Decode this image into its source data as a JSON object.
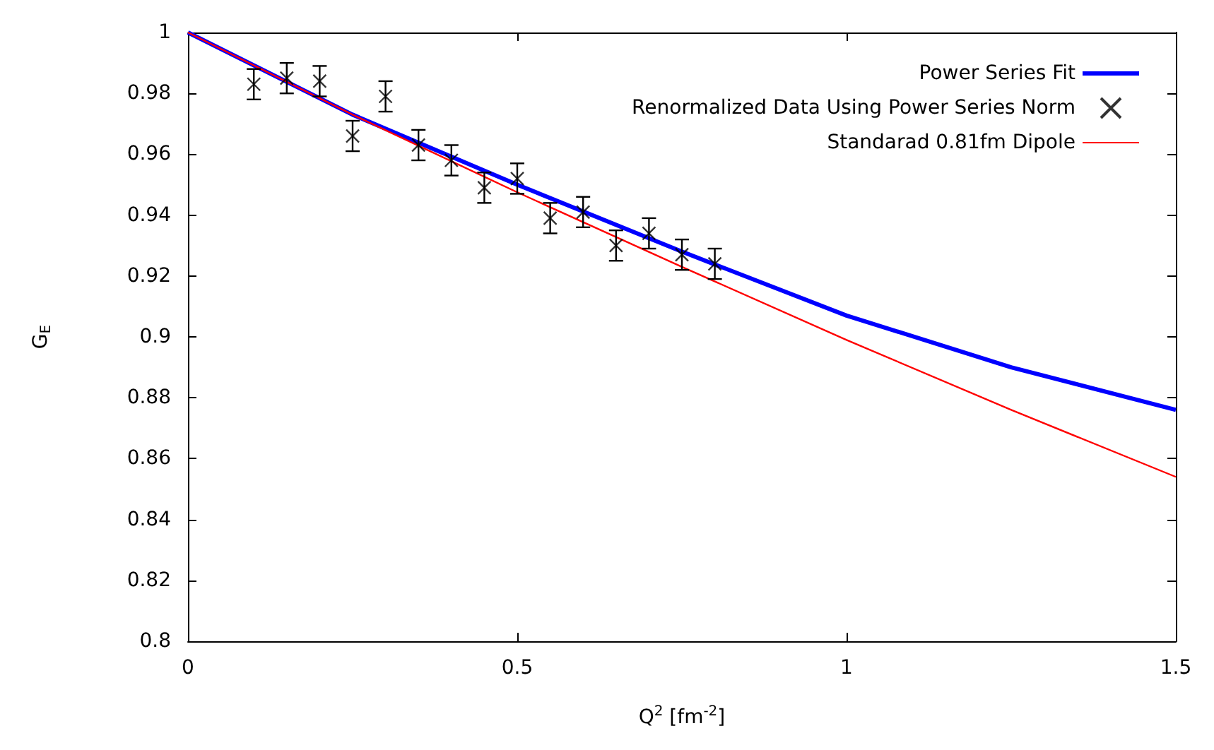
{
  "chart_data": {
    "type": "line",
    "xlabel": "Q$^{2}$ [fm$^{-2}$]",
    "ylabel": "G$_{E}$",
    "xlim": [
      0,
      1.5
    ],
    "xticks": [
      0,
      0.5,
      1,
      1.5
    ],
    "ylim": [
      0.8,
      1
    ],
    "yticks": [
      0.8,
      0.82,
      0.84,
      0.86,
      0.88,
      0.9,
      0.92,
      0.94,
      0.96,
      0.98,
      1
    ],
    "grid": false,
    "legend": "top right",
    "series": [
      {
        "name": "Power Series Fit",
        "color": "#0000ff",
        "x": [
          0,
          0.25,
          0.5,
          0.75,
          1,
          1.25,
          1.5
        ],
        "values": [
          1,
          0.973,
          0.95,
          0.928,
          0.907,
          0.89,
          0.876
        ],
        "marker": "none"
      },
      {
        "name": "Renormalized Data Using Power Series Norm",
        "type": "scatter",
        "color": "#000000",
        "marker": "cross",
        "x": [
          0.1,
          0.15,
          0.2,
          0.25,
          0.3,
          0.35,
          0.4,
          0.45,
          0.5,
          0.55,
          0.6,
          0.65,
          0.7,
          0.75,
          0.8
        ],
        "values": [
          0.983,
          0.985,
          0.984,
          0.966,
          0.979,
          0.963,
          0.958,
          0.949,
          0.952,
          0.939,
          0.941,
          0.93,
          0.934,
          0.927,
          0.924
        ],
        "errors": [
          0.005,
          0.005,
          0.005,
          0.005,
          0.005,
          0.005,
          0.005,
          0.005,
          0.005,
          0.005,
          0.005,
          0.005,
          0.005,
          0.005,
          0.005
        ]
      },
      {
        "name": "Standarad 0.81fm Dipole",
        "color": "#ff0000",
        "x": [
          0,
          0.25,
          0.5,
          0.75,
          1,
          1.25,
          1.5
        ],
        "values": [
          1,
          0.973,
          0.9475,
          0.923,
          0.899,
          0.876,
          0.854
        ],
        "marker": "none"
      }
    ]
  }
}
